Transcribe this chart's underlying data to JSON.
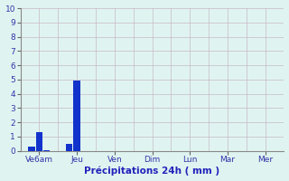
{
  "tick_labels": [
    "Ve6am",
    "Jeu",
    "Ven",
    "Dim",
    "Lun",
    "Mar",
    "Mer"
  ],
  "tick_positions": [
    1,
    3,
    5,
    7,
    9,
    11,
    13
  ],
  "bar_positions": [
    0.6,
    1.0,
    1.4,
    2.6,
    3.0
  ],
  "bar_heights": [
    0.3,
    1.3,
    0.05,
    0.5,
    4.9
  ],
  "bar_color": "#1133cc",
  "bar_width": 0.35,
  "background_color": "#dff4f0",
  "grid_color": "#c8b8c8",
  "xlabel": "Précipitations 24h ( mm )",
  "ylim": [
    0,
    10
  ],
  "xlim": [
    0,
    14
  ],
  "yticks": [
    0,
    1,
    2,
    3,
    4,
    5,
    6,
    7,
    8,
    9,
    10
  ],
  "xlabel_color": "#2222bb",
  "tick_color": "#3333aa",
  "label_fontsize": 6.5,
  "xlabel_fontsize": 7.5
}
